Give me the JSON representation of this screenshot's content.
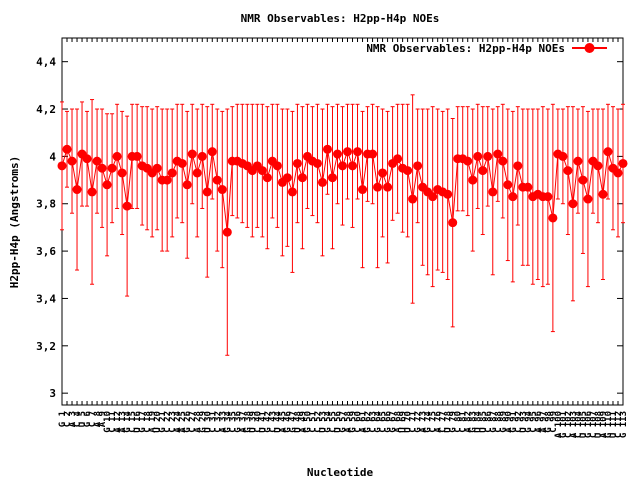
{
  "chart_data": {
    "type": "line",
    "title": "NMR Observables: H2pp-H4p NOEs",
    "xlabel": "Nucleotide",
    "ylabel": "H2pp-H4p (Angstroms)",
    "ylim": [
      2.95,
      4.5
    ],
    "yticks": [
      3,
      3.2,
      3.4,
      3.6,
      3.8,
      4,
      4.2,
      4.4
    ],
    "ytick_labels": [
      "3",
      "3,2",
      "3,4",
      "3,6",
      "3,8",
      "4",
      "4,2",
      "4,4"
    ],
    "grid": false,
    "legend_position": "top-right",
    "series": [
      {
        "name": "NMR Observables: H2pp-H4p NOEs",
        "color": "#ff0000",
        "values": [
          3.96,
          4.03,
          3.98,
          3.86,
          4.01,
          3.99,
          3.85,
          3.98,
          3.95,
          3.88,
          3.95,
          4.0,
          3.93,
          3.79,
          4.0,
          4.0,
          3.96,
          3.95,
          3.93,
          3.95,
          3.9,
          3.9,
          3.93,
          3.98,
          3.97,
          3.88,
          4.01,
          3.93,
          4.0,
          3.85,
          4.02,
          3.9,
          3.86,
          3.68,
          3.98,
          3.98,
          3.97,
          3.96,
          3.94,
          3.96,
          3.94,
          3.91,
          3.98,
          3.96,
          3.89,
          3.91,
          3.85,
          3.97,
          3.91,
          4.0,
          3.98,
          3.97,
          3.89,
          4.03,
          3.91,
          4.01,
          3.96,
          4.02,
          3.96,
          4.02,
          3.86,
          4.01,
          4.01,
          3.87,
          3.93,
          3.87,
          3.97,
          3.99,
          3.95,
          3.94,
          3.82,
          3.96,
          3.87,
          3.85,
          3.83,
          3.86,
          3.85,
          3.84,
          3.72,
          3.99,
          3.99,
          3.98,
          3.9,
          4.0,
          3.94,
          4.0,
          3.85,
          4.01,
          3.98,
          3.88,
          3.83,
          3.96,
          3.87,
          3.87,
          3.83,
          3.84,
          3.83,
          3.83,
          3.74,
          4.01,
          4.0,
          3.94,
          3.8,
          3.98,
          3.9,
          3.82,
          3.98,
          3.96,
          3.84,
          4.02,
          3.95,
          3.93,
          3.97
        ],
        "errors": [
          0.27,
          0.16,
          0.22,
          0.34,
          0.22,
          0.2,
          0.39,
          0.22,
          0.25,
          0.3,
          0.23,
          0.22,
          0.26,
          0.38,
          0.22,
          0.22,
          0.25,
          0.26,
          0.27,
          0.26,
          0.3,
          0.3,
          0.27,
          0.24,
          0.25,
          0.31,
          0.21,
          0.27,
          0.22,
          0.36,
          0.2,
          0.3,
          0.33,
          0.52,
          0.23,
          0.24,
          0.25,
          0.26,
          0.28,
          0.26,
          0.28,
          0.3,
          0.24,
          0.26,
          0.31,
          0.29,
          0.34,
          0.25,
          0.3,
          0.22,
          0.23,
          0.25,
          0.31,
          0.19,
          0.3,
          0.21,
          0.25,
          0.2,
          0.26,
          0.2,
          0.33,
          0.2,
          0.21,
          0.34,
          0.27,
          0.32,
          0.24,
          0.23,
          0.27,
          0.28,
          0.44,
          0.24,
          0.33,
          0.35,
          0.38,
          0.34,
          0.34,
          0.36,
          0.44,
          0.22,
          0.22,
          0.23,
          0.3,
          0.22,
          0.27,
          0.21,
          0.35,
          0.2,
          0.24,
          0.32,
          0.36,
          0.25,
          0.33,
          0.33,
          0.37,
          0.36,
          0.38,
          0.37,
          0.48,
          0.19,
          0.2,
          0.27,
          0.41,
          0.22,
          0.31,
          0.37,
          0.22,
          0.24,
          0.36,
          0.2,
          0.26,
          0.27,
          0.25
        ]
      }
    ],
    "x_tick_labels": [
      "G 1",
      "C 2",
      "A 3",
      "C 4",
      "U 5",
      "G 6",
      "C 7",
      "A 8",
      "A 9",
      "G 10",
      "C 11",
      "A 12",
      "A 13",
      "G 14",
      "C 15",
      "U 16",
      "G 17",
      "C 18",
      "A 19",
      "U 20",
      "G 21",
      "C 22",
      "C 23",
      "A 24",
      "A 25",
      "G 26",
      "C 27",
      "A 28",
      "G 29",
      "U 30",
      "C 31",
      "C 32",
      "A 33",
      "G 34",
      "C 35",
      "G 36",
      "A 37",
      "G 38",
      "U 39",
      "C 40",
      "U 41",
      "G 42",
      "C 43",
      "U 44",
      "A 45",
      "G 46",
      "G 47",
      "U 48",
      "A 49",
      "G 50",
      "C 51",
      "C 52",
      "U 53",
      "G 54",
      "C 55",
      "U 56",
      "G 57",
      "A 58",
      "G 59",
      "C 60",
      "A 61",
      "G 62",
      "C 63",
      "G 64",
      "C 65",
      "G 66",
      "G 67",
      "A 68",
      "U 69",
      "U 70",
      "C 71",
      "G 72",
      "A 73",
      "G 74",
      "C 75",
      "A 76",
      "C 77",
      "U 78",
      "G 79",
      "C 80",
      "C 81",
      "A 82",
      "G 83",
      "U 84",
      "U 85",
      "C 86",
      "G 87",
      "C 88",
      "G 89",
      "A 90",
      "G 91",
      "C 92",
      "U 93",
      "G 94",
      "C 95",
      "A 96",
      "A 97",
      "G 98",
      "C 99",
      "A 100",
      "G 101",
      "C 102",
      "A 103",
      "C 104",
      "U 105",
      "G 106",
      "C 107",
      "U 108",
      "A 109",
      "G 110",
      "U 111",
      "C 112",
      "G 113"
    ]
  }
}
